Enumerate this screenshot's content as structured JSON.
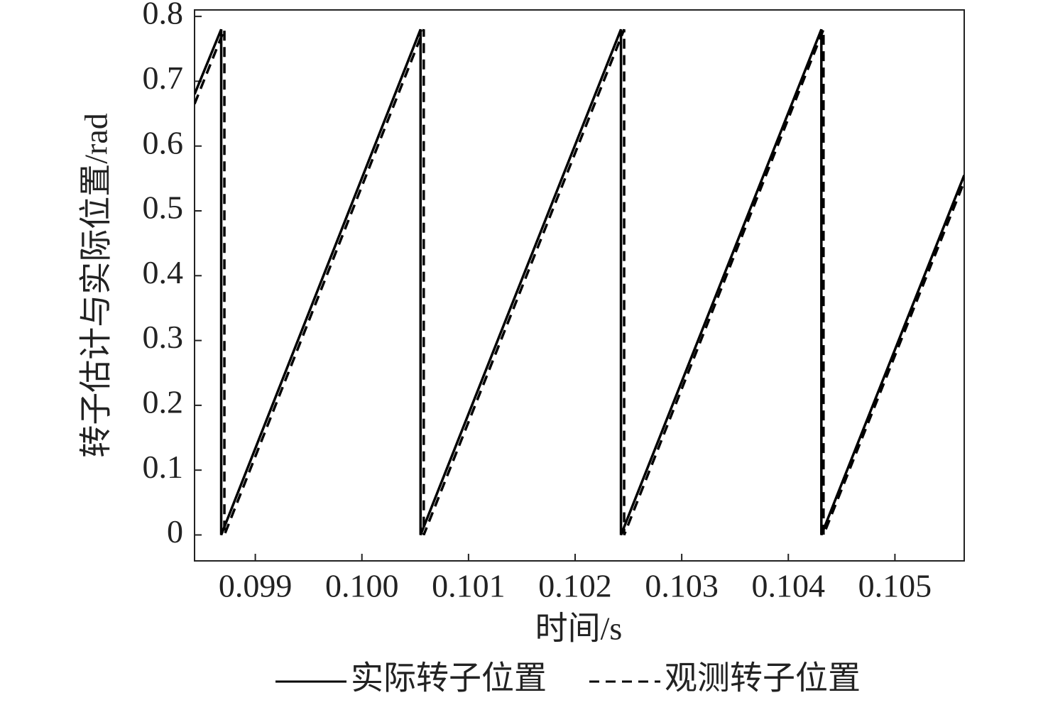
{
  "chart_data": {
    "type": "line",
    "xlabel": "时间/s",
    "ylabel": "转子估计与实际位置/rad",
    "xlim": [
      0.09843,
      0.10565
    ],
    "ylim": [
      -0.04,
      0.81
    ],
    "xticks": [
      0.099,
      {
        "value": 0.1,
        "label": "0.100"
      },
      0.101,
      0.102,
      0.103,
      0.104,
      0.105
    ],
    "yticks": [
      0,
      0.1,
      0.2,
      0.3,
      0.4,
      0.5,
      0.6,
      0.7,
      0.8
    ],
    "legend": "bottom",
    "series": [
      {
        "name": "实际转子位置",
        "color": "#000000",
        "style": "solid",
        "x": [
          0.09843,
          0.09868,
          0.09868,
          0.10055,
          0.10055,
          0.10243,
          0.10243,
          0.10431,
          0.10431,
          0.10565
        ],
        "values": [
          0.68,
          0.78,
          0,
          0.78,
          0,
          0.78,
          0,
          0.78,
          0,
          0.555
        ]
      },
      {
        "name": "观测转子位置",
        "color": "#000000",
        "style": "dashed",
        "x": [
          0.09843,
          0.09871,
          0.09871,
          0.10058,
          0.10058,
          0.10246,
          0.10246,
          0.10433,
          0.10433,
          0.10565
        ],
        "values": [
          0.665,
          0.78,
          0,
          0.78,
          0,
          0.78,
          0,
          0.78,
          0,
          0.545
        ]
      }
    ]
  }
}
